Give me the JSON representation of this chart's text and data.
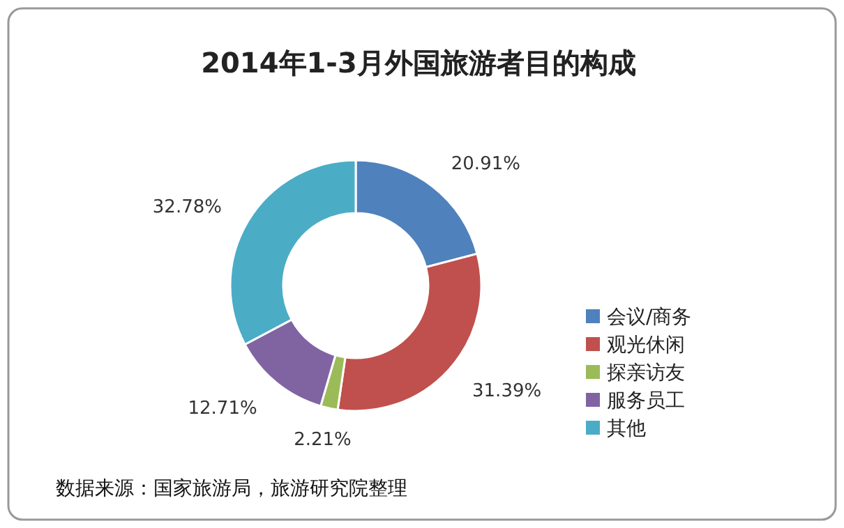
{
  "chart_data": {
    "type": "donut",
    "title": "2014年1-3月外国旅游者目的构成",
    "categories": [
      "会议/商务",
      "观光休闲",
      "探亲访友",
      "服务员工",
      "其他"
    ],
    "values": [
      20.91,
      31.39,
      2.21,
      12.71,
      32.78
    ],
    "colors": [
      "#4f81bd",
      "#c0504d",
      "#9bbb59",
      "#8064a2",
      "#4bacc6"
    ],
    "value_labels": [
      "20.91%",
      "31.39%",
      "2.21%",
      "12.71%",
      "32.78%"
    ],
    "legend": "right",
    "annotations": [
      "数据来源：国家旅游局，旅游研究院整理"
    ]
  }
}
